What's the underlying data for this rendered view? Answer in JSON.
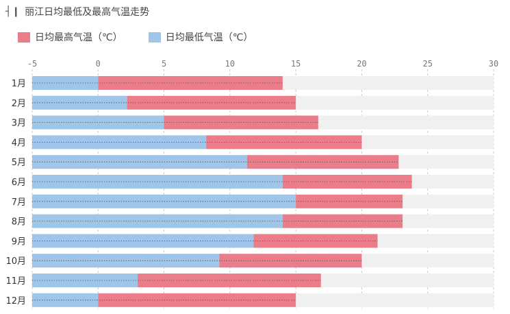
{
  "title": "丽江日均最低及最高气温走势",
  "title_mark": "┤❙",
  "colors": {
    "high": "#eb7d8a",
    "low": "#9fc5e8",
    "track": "#f0f0f0",
    "grid": "#c8c8c8"
  },
  "chart_data": {
    "type": "bar",
    "orientation": "horizontal",
    "categories": [
      "1月",
      "2月",
      "3月",
      "4月",
      "5月",
      "6月",
      "7月",
      "8月",
      "9月",
      "10月",
      "11月",
      "12月"
    ],
    "series": [
      {
        "name": "日均最高气温（℃）",
        "key": "high",
        "values": [
          14,
          15,
          16.7,
          20,
          22.8,
          23.8,
          23.1,
          23.1,
          21.2,
          20,
          16.9,
          15
        ]
      },
      {
        "name": "日均最低气温（℃）",
        "key": "low",
        "values": [
          0,
          2.2,
          5,
          8.2,
          11.3,
          14,
          15,
          14,
          11.8,
          9.2,
          3,
          0
        ]
      }
    ],
    "xlim": [
      -5,
      30
    ],
    "xticks": [
      -5,
      0,
      5,
      10,
      15,
      20,
      25,
      30
    ],
    "legend": "top-left",
    "grid": true
  }
}
